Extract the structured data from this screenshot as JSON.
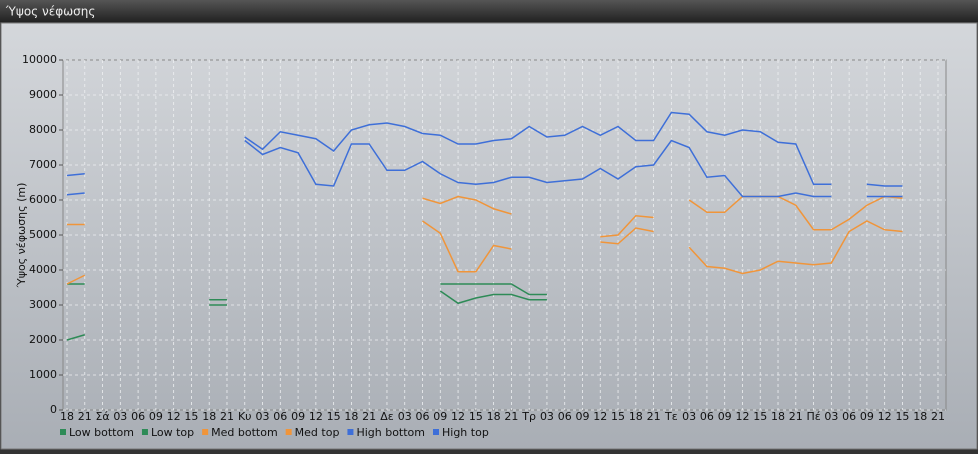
{
  "chart_data": {
    "type": "line",
    "title": "Ύψος νέφωσης",
    "ylabel": "Ύψος νέφωσης (m)",
    "categories": [
      "18",
      "21",
      "Σά",
      "03",
      "06",
      "09",
      "12",
      "15",
      "18",
      "21",
      "Κυ",
      "03",
      "06",
      "09",
      "12",
      "15",
      "18",
      "21",
      "Δε",
      "03",
      "06",
      "09",
      "12",
      "15",
      "18",
      "21",
      "Τρ",
      "03",
      "06",
      "09",
      "12",
      "15",
      "18",
      "21",
      "Τε",
      "03",
      "06",
      "09",
      "12",
      "15",
      "18",
      "21",
      "Πέ",
      "03",
      "06",
      "09",
      "12",
      "15",
      "18",
      "21"
    ],
    "series": [
      {
        "name": "Low bottom",
        "color": "#2e8b57",
        "values": [
          2000,
          2150,
          null,
          null,
          null,
          null,
          null,
          null,
          3000,
          3000,
          null,
          null,
          null,
          null,
          null,
          null,
          null,
          null,
          null,
          null,
          null,
          3400,
          3050,
          3200,
          3300,
          3300,
          3150,
          3150,
          null,
          null,
          null,
          null,
          null,
          null,
          null,
          null,
          null,
          null,
          null,
          null,
          null,
          null,
          null,
          null,
          null,
          null,
          null,
          null,
          null,
          null
        ]
      },
      {
        "name": "Low top",
        "color": "#2e8b57",
        "values": [
          3600,
          3600,
          null,
          null,
          null,
          null,
          null,
          null,
          3150,
          3150,
          null,
          null,
          null,
          null,
          null,
          null,
          null,
          null,
          null,
          null,
          null,
          3600,
          3600,
          3600,
          3600,
          3600,
          3300,
          3300,
          null,
          null,
          null,
          null,
          null,
          null,
          null,
          null,
          null,
          null,
          null,
          null,
          null,
          null,
          null,
          null,
          null,
          null,
          null,
          null,
          null,
          null
        ]
      },
      {
        "name": "Med bottom",
        "color": "#f0953a",
        "values": [
          3600,
          3850,
          null,
          null,
          null,
          null,
          null,
          null,
          null,
          null,
          null,
          null,
          null,
          null,
          null,
          null,
          null,
          null,
          null,
          null,
          5400,
          5050,
          3950,
          3950,
          4700,
          4600,
          null,
          null,
          null,
          null,
          4800,
          4750,
          5200,
          5100,
          null,
          4650,
          4100,
          4050,
          3900,
          4000,
          4250,
          4200,
          4150,
          4200,
          5100,
          5400,
          5150,
          5100,
          null,
          null
        ]
      },
      {
        "name": "Med top",
        "color": "#f0953a",
        "values": [
          5300,
          5300,
          null,
          null,
          null,
          null,
          null,
          null,
          null,
          null,
          null,
          null,
          null,
          null,
          null,
          null,
          null,
          null,
          null,
          null,
          6050,
          5900,
          6100,
          6000,
          5750,
          5600,
          null,
          null,
          null,
          null,
          4950,
          5000,
          5550,
          5500,
          null,
          6000,
          5650,
          5650,
          6100,
          6100,
          6100,
          5850,
          5150,
          5150,
          5450,
          5850,
          6100,
          6050,
          null,
          null
        ]
      },
      {
        "name": "High bottom",
        "color": "#3e6fd8",
        "values": [
          6150,
          6200,
          null,
          null,
          null,
          null,
          null,
          null,
          null,
          null,
          7700,
          7300,
          7500,
          7350,
          6450,
          6400,
          7600,
          7600,
          6850,
          6850,
          7100,
          6750,
          6500,
          6450,
          6500,
          6650,
          6650,
          6500,
          6550,
          6600,
          6900,
          6600,
          6950,
          7000,
          7700,
          7500,
          6650,
          6700,
          6100,
          6100,
          6100,
          6200,
          6100,
          6100,
          null,
          6100,
          6100,
          6100,
          null,
          null
        ]
      },
      {
        "name": "High top",
        "color": "#3e6fd8",
        "values": [
          6700,
          6750,
          null,
          null,
          null,
          null,
          null,
          null,
          null,
          null,
          7800,
          7450,
          7950,
          7850,
          7750,
          7400,
          8000,
          8150,
          8200,
          8100,
          7900,
          7850,
          7600,
          7600,
          7700,
          7750,
          8100,
          7800,
          7850,
          8100,
          7850,
          8100,
          7700,
          7700,
          8500,
          8450,
          7950,
          7850,
          8000,
          7950,
          7650,
          7600,
          6450,
          6450,
          null,
          6450,
          6400,
          6400,
          null,
          null
        ]
      }
    ],
    "ylim": [
      0,
      10000
    ],
    "yticks": [
      0,
      1000,
      2000,
      3000,
      4000,
      5000,
      6000,
      7000,
      8000,
      9000,
      10000
    ],
    "grid": true
  }
}
